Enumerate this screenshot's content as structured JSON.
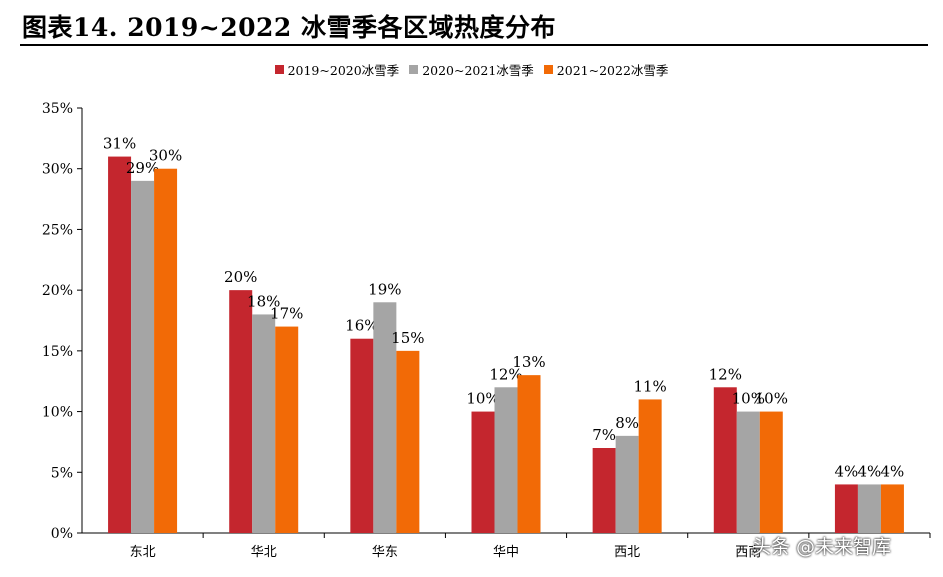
{
  "title": "图表14. 2019~2022 冰雪季各区域热度分布",
  "watermark": "头条 @未来智库",
  "chart_data": {
    "type": "bar",
    "title": "",
    "categories": [
      "东北",
      "华北",
      "华东",
      "华中",
      "西北",
      "西南",
      ""
    ],
    "series": [
      {
        "name": "2019~2020冰雪季",
        "color": "#c4262e",
        "values": [
          31,
          20,
          16,
          10,
          7,
          12,
          4
        ]
      },
      {
        "name": "2020~2021冰雪季",
        "color": "#a5a5a5",
        "values": [
          29,
          18,
          19,
          12,
          8,
          10,
          4
        ]
      },
      {
        "name": "2021~2022冰雪季",
        "color": "#f26a06",
        "values": [
          30,
          17,
          15,
          13,
          11,
          10,
          4
        ]
      }
    ],
    "ylim": [
      0,
      35
    ],
    "yticks": [
      "0%",
      "5%",
      "10%",
      "15%",
      "20%",
      "25%",
      "30%",
      "35%"
    ],
    "value_suffix": "%",
    "grid": false,
    "legend_position": "top-center"
  }
}
